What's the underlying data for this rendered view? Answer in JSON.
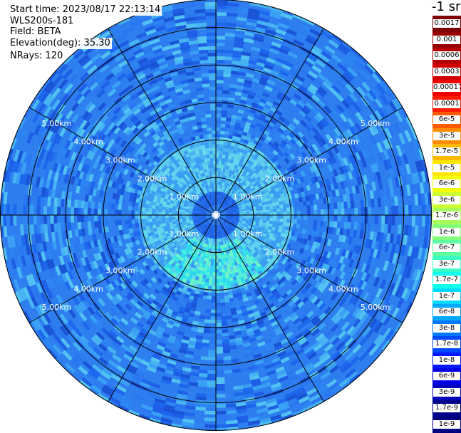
{
  "info": {
    "start_time": "Start time: 2023/08/17 22:13:14",
    "device": "WLS200s-181",
    "field": "Field: BETA",
    "elevation": "Elevation(deg): 35.30",
    "nrays": "NRays: 120"
  },
  "colorbar": {
    "unit_label": "-1 sr",
    "ticks": [
      "0.0017",
      "0.001",
      "0.0006",
      "0.0003",
      "0.00017",
      "0.0001",
      "6e-5",
      "3e-5",
      "1.7e-5",
      "1e-5",
      "6e-6",
      "3e-6",
      "1.7e-6",
      "1e-6",
      "6e-7",
      "3e-7",
      "1.7e-7",
      "1e-7",
      "6e-8",
      "3e-8",
      "1.7e-8",
      "1e-8",
      "6e-9",
      "3e-9",
      "1.7e-9",
      "1e-9"
    ],
    "colors": [
      "#7f0000",
      "#980000",
      "#b40000",
      "#d20000",
      "#ee0000",
      "#ff1a00",
      "#ff5a00",
      "#ff8c00",
      "#ffb900",
      "#ffe600",
      "#f2ff0d",
      "#ccff33",
      "#a8ff57",
      "#83ff7c",
      "#5dffa1",
      "#37ffc7",
      "#12ffec",
      "#00d8ff",
      "#00a8ff",
      "#0078ff",
      "#0048ff",
      "#0018ff",
      "#0000e4",
      "#0000b8",
      "#00008d",
      "#000080"
    ]
  },
  "chart_data": {
    "type": "polar",
    "field": "BETA",
    "elevation_deg": 35.3,
    "n_rays": 120,
    "range_rings_km": [
      1.0,
      2.0,
      3.0,
      4.0,
      5.0
    ],
    "range_ring_labels": [
      "1.00km",
      "2.00km",
      "3.00km",
      "4.00km",
      "5.00km"
    ],
    "max_range_km": 5.75,
    "spoke_azimuths_deg": [
      0,
      30,
      60,
      90,
      120,
      150,
      180,
      210,
      240,
      270,
      300,
      330
    ],
    "color_scale": "log",
    "range_description": "backscatter mostly 1e-7 to 3e-7 sr-1; near-field ring at ~1.3 km around 1.7e-7 to 6e-7 with strongest (about 3e-7 to 6e-7) in the south; outer ranges mostly 1e-8 to 6e-8",
    "grid": true
  }
}
